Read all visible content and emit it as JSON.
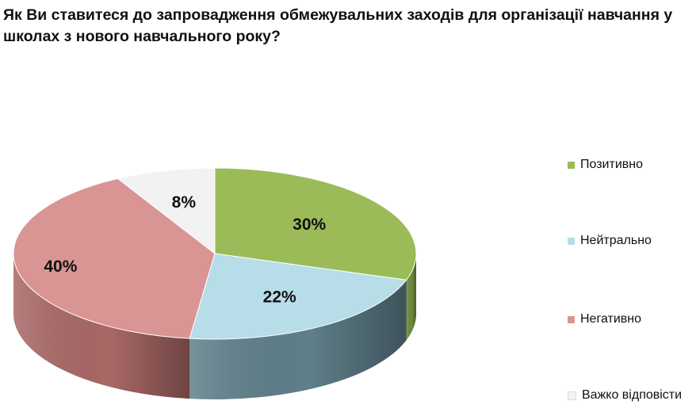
{
  "chart_data": {
    "type": "pie",
    "title": "Як Ви ставитеся до запровадження обмежувальних заходів для організації навчання у школах з нового навчального року?",
    "categories": [
      "Позитивно",
      "Нейтрально",
      "Негативно",
      "Важко відповісти"
    ],
    "values": [
      30,
      22,
      40,
      8
    ],
    "value_labels": [
      "30%",
      "22%",
      "40%",
      "8%"
    ],
    "colors": [
      "#9bbb59",
      "#b7dde8",
      "#d99594",
      "#f2f2f2"
    ],
    "side_colors": [
      "#6f8a3c",
      "#5f7f8a",
      "#a86866",
      "#b5b5b5"
    ],
    "legend_position": "right",
    "style": "3d"
  }
}
